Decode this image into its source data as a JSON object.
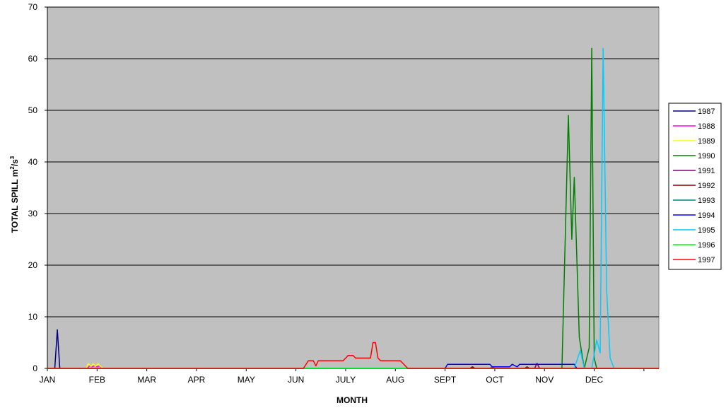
{
  "chart_data": {
    "type": "line",
    "title": "",
    "xlabel": "MONTH",
    "ylabel_main": "TOTAL SPILL m",
    "ylabel_sup1": "2",
    "ylabel_mid": "/s",
    "ylabel_sup2": "3",
    "ylim": [
      0,
      70
    ],
    "xlim": [
      0,
      12.3
    ],
    "yticks": [
      0,
      10,
      20,
      30,
      40,
      50,
      60,
      70
    ],
    "gridlines": [
      10,
      20,
      30,
      40,
      50,
      60,
      70
    ],
    "months": [
      "JAN",
      "FEB",
      "MAR",
      "APR",
      "MAY",
      "JUN",
      "JULY",
      "AUG",
      "SEPT",
      "OCT",
      "NOV",
      "DEC"
    ],
    "plot_background": "#c0c0c0",
    "legend_position": "right",
    "series": [
      {
        "name": "1987",
        "color": "#000080",
        "x": [
          0,
          0.15,
          0.2,
          0.25,
          12.3
        ],
        "y": [
          0,
          0,
          7.5,
          0,
          0
        ]
      },
      {
        "name": "1988",
        "color": "#ff00ff",
        "x": [
          0,
          0.8,
          0.85,
          0.9,
          0.95,
          1.0,
          1.05,
          1.1,
          12.3
        ],
        "y": [
          0,
          0,
          0.5,
          0.3,
          0.5,
          0.3,
          0.5,
          0,
          0
        ]
      },
      {
        "name": "1989",
        "color": "#ffff00",
        "x": [
          0,
          0.78,
          0.82,
          0.88,
          0.92,
          0.97,
          1.02,
          1.07,
          1.12,
          12.3
        ],
        "y": [
          0,
          0,
          0.9,
          0.4,
          0.9,
          0.4,
          0.9,
          0.4,
          0,
          0
        ]
      },
      {
        "name": "1990",
        "color": "#008000",
        "x": [
          0,
          10.35,
          10.48,
          10.55,
          10.6,
          10.7,
          10.8,
          10.9,
          10.95,
          11.0,
          11.05,
          11.2,
          12.3
        ],
        "y": [
          0,
          0,
          49,
          25,
          37,
          6,
          0,
          4,
          62,
          2,
          0,
          0,
          0
        ]
      },
      {
        "name": "1991",
        "color": "#800080",
        "x": [
          0,
          9.6,
          9.65,
          9.7,
          9.8,
          9.85,
          9.9,
          10.0,
          12.3
        ],
        "y": [
          0,
          0,
          0.3,
          0,
          0,
          1.0,
          0,
          0,
          0
        ]
      },
      {
        "name": "1992",
        "color": "#800000",
        "x": [
          0,
          8.5,
          8.55,
          8.6,
          12.3
        ],
        "y": [
          0,
          0,
          0.3,
          0,
          0
        ]
      },
      {
        "name": "1993",
        "color": "#008080",
        "x": [
          0,
          8.9,
          8.95,
          9.0,
          12.3
        ],
        "y": [
          0,
          0,
          0.3,
          0,
          0
        ]
      },
      {
        "name": "1994",
        "color": "#0000ff",
        "x": [
          0,
          8.0,
          8.05,
          8.9,
          8.95,
          9.3,
          9.35,
          9.45,
          9.5,
          10.6,
          10.65,
          12.3
        ],
        "y": [
          0,
          0,
          0.8,
          0.8,
          0.3,
          0.3,
          0.8,
          0.3,
          0.8,
          0.8,
          0,
          0
        ]
      },
      {
        "name": "1995",
        "color": "#00ccff",
        "x": [
          0,
          10.6,
          10.72,
          10.8,
          10.95,
          11.05,
          11.12,
          11.18,
          11.25,
          11.32,
          11.4,
          12.3
        ],
        "y": [
          0,
          0,
          3.5,
          0,
          0,
          5.5,
          3,
          62,
          15,
          2,
          0,
          0
        ]
      },
      {
        "name": "1996",
        "color": "#00ff00",
        "x": [
          0,
          0.9,
          1.1,
          5.2,
          7.2,
          12.3
        ],
        "y": [
          0,
          0,
          0,
          0,
          0,
          0
        ]
      },
      {
        "name": "1997",
        "color": "#ff0000",
        "x": [
          0,
          5.15,
          5.25,
          5.35,
          5.4,
          5.45,
          5.95,
          6.05,
          6.15,
          6.2,
          6.5,
          6.55,
          6.6,
          6.65,
          6.7,
          7.1,
          7.25,
          12.3
        ],
        "y": [
          0,
          0,
          1.5,
          1.5,
          0.5,
          1.5,
          1.5,
          2.5,
          2.5,
          2.0,
          2.0,
          5.0,
          5.0,
          2.0,
          1.5,
          1.5,
          0,
          0
        ]
      }
    ]
  }
}
